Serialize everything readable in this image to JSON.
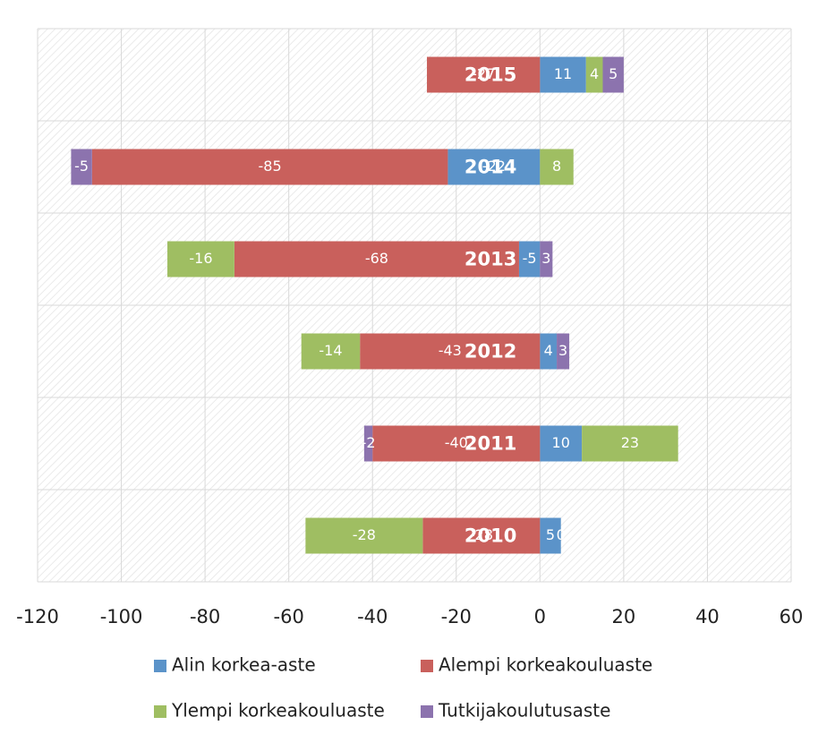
{
  "chart_data": {
    "type": "diverging-bar",
    "categories": [
      "2015",
      "2014",
      "2013",
      "2012",
      "2011",
      "2010"
    ],
    "series": [
      {
        "name": "Alin korkea-aste",
        "color": "#5b93c9",
        "values": [
          11,
          -22,
          -5,
          4,
          10,
          5
        ]
      },
      {
        "name": "Alempi korkeakouluaste",
        "color": "#c9605c",
        "values": [
          -27,
          -85,
          -68,
          -43,
          -40,
          -28
        ]
      },
      {
        "name": "Ylempi korkeakouluaste",
        "color": "#9fbe62",
        "values": [
          4,
          8,
          -16,
          -14,
          23,
          -28
        ]
      },
      {
        "name": "Tutkijakoulutusaste",
        "color": "#8c73ae",
        "values": [
          5,
          -5,
          3,
          3,
          -2,
          0
        ]
      }
    ],
    "xlim": [
      -120,
      60
    ],
    "xticks": [
      -120,
      -100,
      -80,
      -60,
      -40,
      -20,
      0,
      20,
      40,
      60
    ],
    "grid": true
  }
}
